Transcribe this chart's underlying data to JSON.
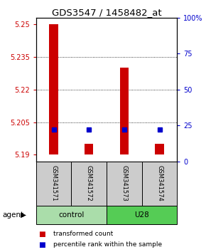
{
  "title": "GDS3547 / 1458482_at",
  "samples": [
    "GSM341571",
    "GSM341572",
    "GSM341573",
    "GSM341574"
  ],
  "bar_values": [
    5.25,
    5.195,
    5.23,
    5.195
  ],
  "percentile_values": [
    5.2015,
    5.2015,
    5.2015,
    5.2015
  ],
  "baseline": 5.19,
  "ylim_left": [
    5.187,
    5.253
  ],
  "yticks_left": [
    5.19,
    5.205,
    5.22,
    5.235,
    5.25
  ],
  "ytick_labels_left": [
    "5.19",
    "5.205",
    "5.22",
    "5.235",
    "5.25"
  ],
  "ylim_right": [
    0,
    100
  ],
  "yticks_right": [
    0,
    25,
    50,
    75,
    100
  ],
  "ytick_labels_right": [
    "0",
    "25",
    "50",
    "75",
    "100%"
  ],
  "bar_color": "#cc0000",
  "percentile_color": "#0000cc",
  "groups": [
    {
      "label": "control",
      "samples": [
        0,
        1
      ],
      "color": "#aaddaa"
    },
    {
      "label": "U28",
      "samples": [
        2,
        3
      ],
      "color": "#55cc55"
    }
  ],
  "sample_bg_color": "#cccccc",
  "left_tick_color": "#cc0000",
  "right_tick_color": "#0000cc",
  "title_fontsize": 9.5,
  "tick_fontsize": 7,
  "sample_fontsize": 6,
  "group_fontsize": 7.5,
  "legend_fontsize": 6.5,
  "agent_fontsize": 7.5,
  "bar_width": 0.25
}
